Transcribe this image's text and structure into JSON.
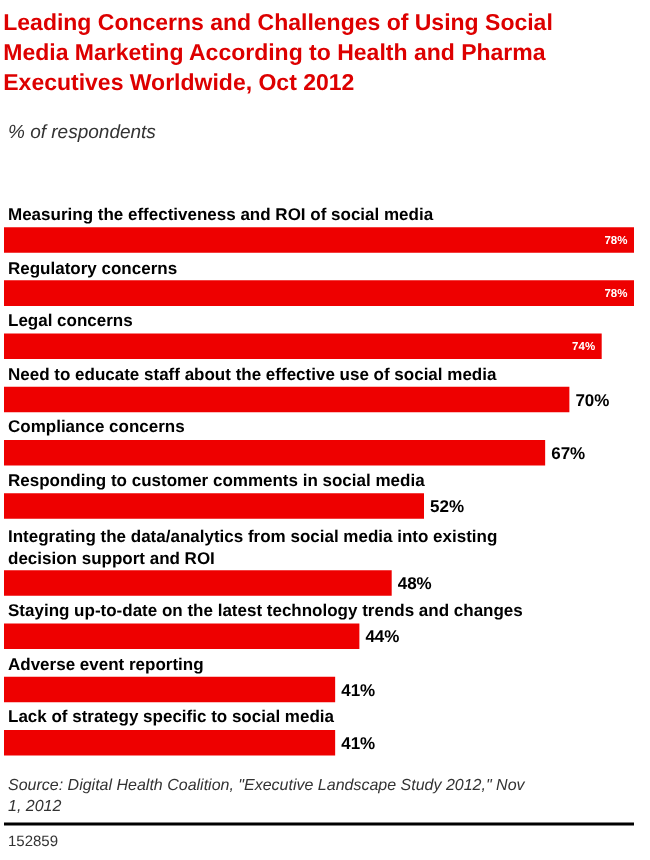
{
  "chart_data": {
    "type": "bar",
    "orientation": "horizontal",
    "title": "Leading Concerns and Challenges of Using Social Media Marketing According to Health and Pharma Executives Worldwide, Oct 2012",
    "subtitle": "% of respondents",
    "categories": [
      "Measuring the effectiveness and ROI of social media",
      "Regulatory concerns",
      "Legal concerns",
      "Need to educate staff about the effective use of social media",
      "Compliance concerns",
      "Responding to customer comments in social media",
      "Integrating the data/analytics from social media into existing decision support and ROI",
      "Staying up-to-date on the latest technology trends and changes",
      "Adverse event reporting",
      "Lack of strategy specific to social media"
    ],
    "values": [
      78,
      78,
      74,
      70,
      67,
      52,
      48,
      44,
      41,
      41
    ],
    "value_labels": [
      "78%",
      "78%",
      "74%",
      "70%",
      "67%",
      "52%",
      "48%",
      "44%",
      "41%",
      "41%"
    ],
    "color": "#ee0000",
    "annotations": [
      "Source: Digital Health Coalition, \"Executive Landscape Study 2012,\" Nov 1, 2012",
      "152859"
    ]
  }
}
